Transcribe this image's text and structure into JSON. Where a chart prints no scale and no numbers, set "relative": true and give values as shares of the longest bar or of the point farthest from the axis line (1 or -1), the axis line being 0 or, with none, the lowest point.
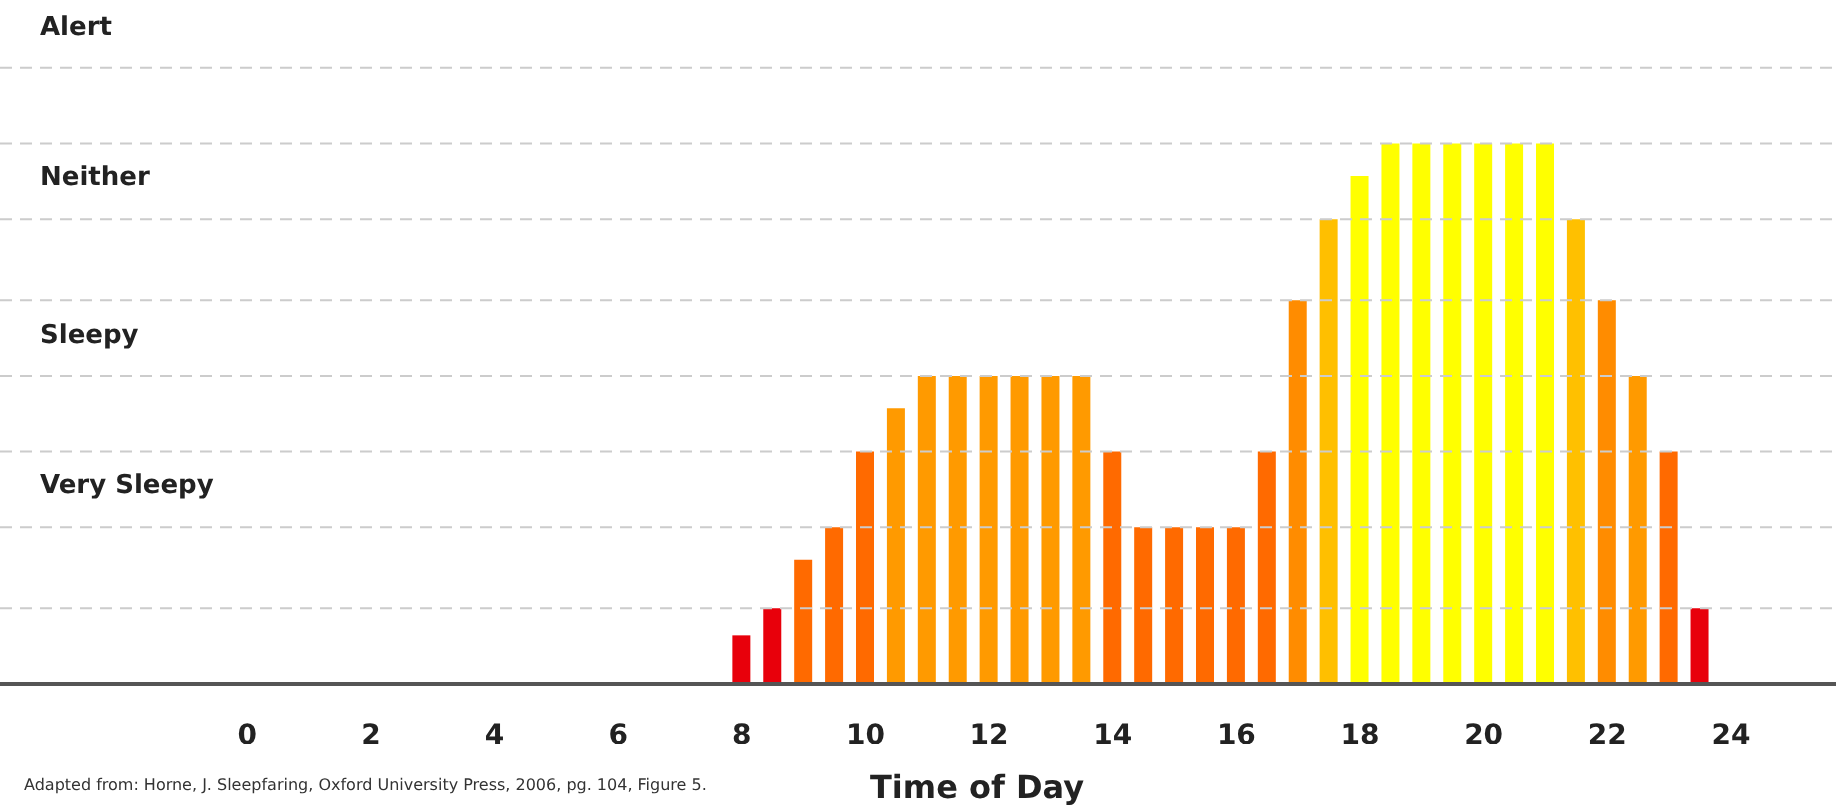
{
  "chart_data": {
    "type": "bar",
    "xlabel": "Time of Day",
    "relative": true,
    "x": [
      8,
      8.5,
      9,
      9.5,
      10,
      10.5,
      11,
      11.5,
      12,
      12.5,
      13,
      13.5,
      14,
      14.5,
      15,
      15.5,
      16,
      16.5,
      17,
      17.5,
      18,
      18.5,
      19,
      19.5,
      20,
      20.5,
      21,
      21.5,
      22,
      22.5,
      23,
      23.5
    ],
    "values": [
      0.09,
      0.14,
      0.23,
      0.29,
      0.43,
      0.51,
      0.57,
      0.57,
      0.57,
      0.57,
      0.57,
      0.57,
      0.43,
      0.29,
      0.29,
      0.29,
      0.29,
      0.43,
      0.71,
      0.86,
      0.94,
      1,
      1,
      1,
      1,
      1,
      1,
      0.86,
      0.71,
      0.57,
      0.43,
      0.14
    ],
    "colors": [
      "#e8000b",
      "#e8000b",
      "#ff6a00",
      "#ff6a00",
      "#ff6a00",
      "#ff9a00",
      "#ff9a00",
      "#ff9a00",
      "#ff9a00",
      "#ff9a00",
      "#ff9a00",
      "#ff9a00",
      "#ff6a00",
      "#ff6a00",
      "#ff6a00",
      "#ff6a00",
      "#ff6a00",
      "#ff6a00",
      "#ff8c00",
      "#ffbf00",
      "#ffff00",
      "#ffff00",
      "#ffff00",
      "#ffff00",
      "#ffff00",
      "#ffff00",
      "#ffff00",
      "#ffc000",
      "#ff8c00",
      "#ff9a00",
      "#ff6a00",
      "#e8000b"
    ],
    "xlim": [
      -4,
      25.7
    ],
    "xticks": [
      0,
      2,
      4,
      6,
      8,
      10,
      12,
      14,
      16,
      18,
      20,
      22,
      24
    ],
    "ref_lines": [
      {
        "axis": "y",
        "value": 0.14,
        "color": "#cccccc",
        "line_style": "dashed"
      },
      {
        "axis": "y",
        "value": 0.29,
        "color": "#cccccc",
        "line_style": "dashed"
      },
      {
        "axis": "y",
        "value": 0.43,
        "color": "#cccccc",
        "line_style": "dashed"
      },
      {
        "axis": "y",
        "value": 0.57,
        "color": "#cccccc",
        "line_style": "dashed"
      },
      {
        "axis": "y",
        "value": 0.71,
        "color": "#cccccc",
        "line_style": "dashed"
      },
      {
        "axis": "y",
        "value": 0.86,
        "color": "#cccccc",
        "line_style": "dashed"
      },
      {
        "axis": "y",
        "value": 1,
        "color": "#cccccc",
        "line_style": "dashed"
      },
      {
        "axis": "y",
        "value": 1.14,
        "color": "#cccccc",
        "line_style": "dashed"
      }
    ],
    "annotations": [
      "Adapted from: Horne, J. Sleepfaring, Oxford University Press, 2006, pg. 104, Figure 5.",
      "Very Sleepy",
      "Sleepy",
      "Neither",
      "Alert"
    ]
  }
}
